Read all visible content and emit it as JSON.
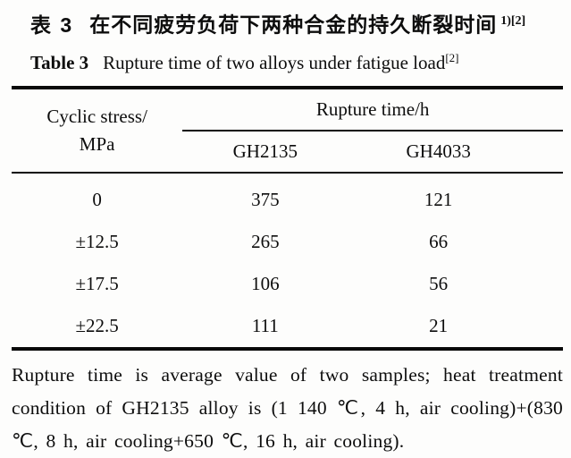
{
  "title_zh": {
    "label": "表 3",
    "text": "在不同疲劳负荷下两种合金的持久断裂时间",
    "sup": "1)[2]"
  },
  "title_en": {
    "label": "Table 3",
    "text": "Rupture time of two alloys under fatigue load",
    "sup": "[2]"
  },
  "table": {
    "col1_header_line1": "Cyclic stress/",
    "col1_header_line2": "MPa",
    "span_header": "Rupture time/h",
    "sub_headers": {
      "col2": "GH2135",
      "col3": "GH4033"
    },
    "rows": [
      {
        "stress": "0",
        "gh2135": "375",
        "gh4033": "121"
      },
      {
        "stress": "±12.5",
        "gh2135": "265",
        "gh4033": "66"
      },
      {
        "stress": "±17.5",
        "gh2135": "106",
        "gh4033": "56"
      },
      {
        "stress": "±22.5",
        "gh2135": "111",
        "gh4033": "21"
      }
    ]
  },
  "footnote": "Rupture time is average value of two samples; heat treatment condition of GH2135 alloy is (1 140 ℃, 4 h, air cooling)+(830 ℃, 8 h, air cooling+650 ℃, 16 h, air cooling)."
}
